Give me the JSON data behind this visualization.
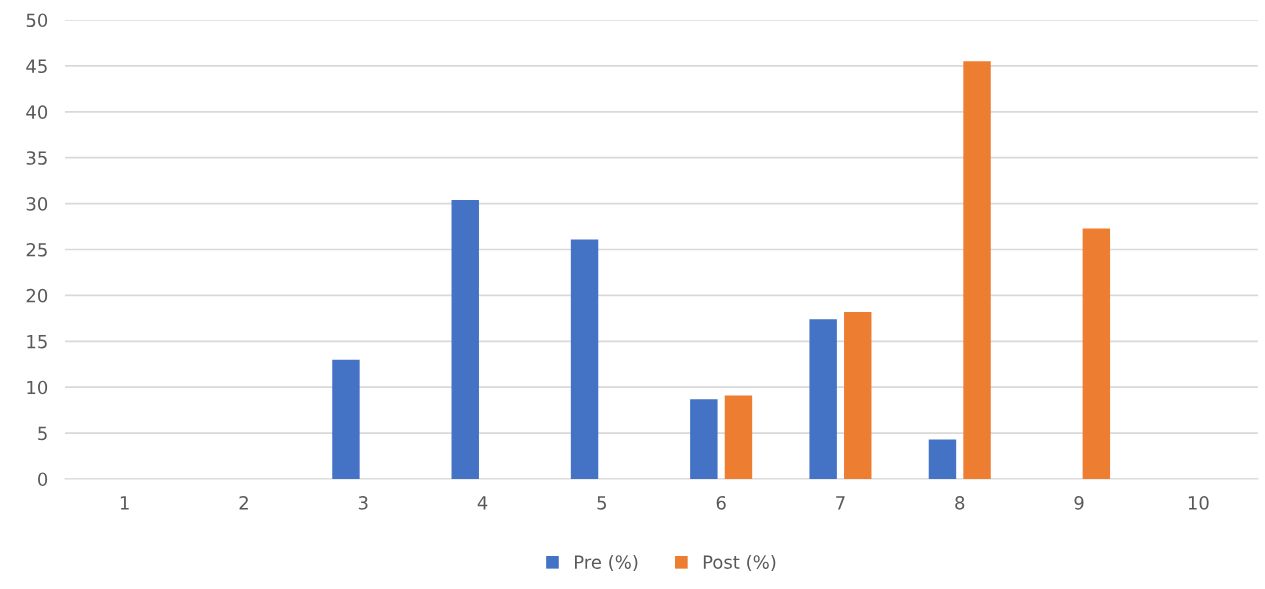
{
  "chart_data": {
    "type": "bar",
    "categories": [
      "1",
      "2",
      "3",
      "4",
      "5",
      "6",
      "7",
      "8",
      "9",
      "10"
    ],
    "series": [
      {
        "name": "Pre (%)",
        "color": "#4472c4",
        "values": [
          0,
          0,
          13.0,
          30.4,
          26.1,
          8.7,
          17.4,
          4.3,
          0,
          0
        ]
      },
      {
        "name": "Post (%)",
        "color": "#ed7d31",
        "values": [
          0,
          0,
          0,
          0,
          0,
          9.1,
          18.2,
          45.5,
          27.3,
          0
        ]
      }
    ],
    "ylim": [
      0,
      50
    ],
    "yticks": [
      0,
      5,
      10,
      15,
      20,
      25,
      30,
      35,
      40,
      45,
      50
    ],
    "grid": "y",
    "legend": "bottom"
  }
}
